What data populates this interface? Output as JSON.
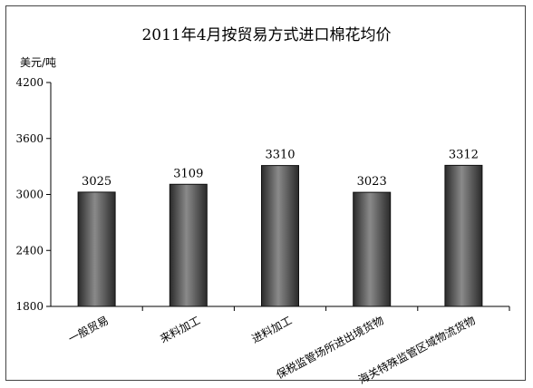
{
  "chart_data": {
    "type": "bar",
    "title": "2011年4月按贸易方式进口棉花均价",
    "ylabel": "美元/吨",
    "xlabel": "",
    "categories": [
      "一般贸易",
      "来料加工",
      "进料加工",
      "保税监管场所进出境货物",
      "海关特殊监管区域物流货物"
    ],
    "values": [
      3025,
      3109,
      3310,
      3023,
      3312
    ],
    "data_labels": [
      "3025",
      "3109",
      "3310",
      "3023",
      "3312"
    ],
    "ylim": [
      1800,
      4200
    ],
    "yticks": [
      1800,
      2400,
      3000,
      3600,
      4200
    ],
    "ytick_labels": [
      "1800",
      "2400",
      "3000",
      "3600",
      "4200"
    ],
    "grid": false,
    "legend": "none",
    "bar_color": "#555555"
  }
}
